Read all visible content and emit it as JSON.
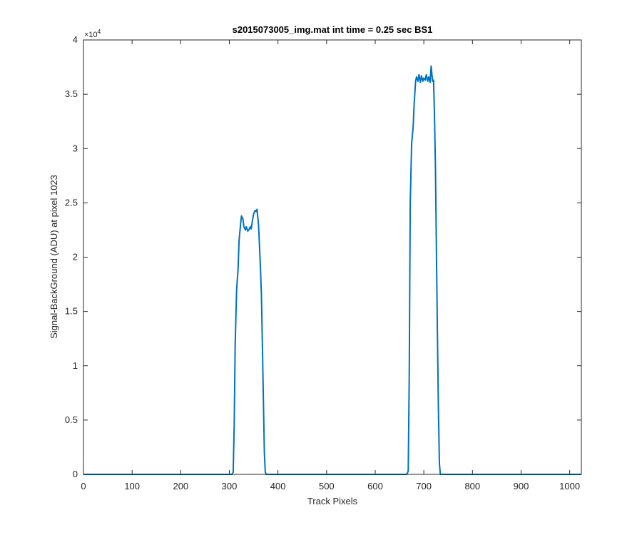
{
  "chart_data": {
    "type": "line",
    "title": "s2015073005_img.mat int time = 0.25 sec   BS1",
    "xlabel": "Track Pixels",
    "ylabel": "Signal-BackGround (ADU) at pixel 1023",
    "xlim": [
      0,
      1024
    ],
    "ylim": [
      0,
      40000
    ],
    "xticks": [
      0,
      100,
      200,
      300,
      400,
      500,
      600,
      700,
      800,
      900,
      1000
    ],
    "yticks": [
      0,
      5000,
      10000,
      15000,
      20000,
      25000,
      30000,
      35000,
      40000
    ],
    "yticklabels": [
      "0",
      "0.5",
      "1",
      "1.5",
      "2",
      "2.5",
      "3",
      "3.5",
      "4"
    ],
    "y_exponent_label": "×10",
    "y_exponent_power": "4",
    "grid": false,
    "line_color": "#0072BD",
    "series": [
      {
        "x": [
          0,
          100,
          200,
          300,
          305,
          308,
          310,
          312,
          315,
          318,
          320,
          323,
          325,
          328,
          330,
          333,
          335,
          338,
          340,
          343,
          345,
          348,
          350,
          353,
          355,
          357,
          360,
          362,
          364,
          366,
          368,
          370,
          372,
          374,
          376,
          380,
          400,
          500,
          600,
          665,
          668,
          670,
          672,
          675,
          678,
          680,
          683,
          685,
          688,
          690,
          693,
          695,
          698,
          700,
          703,
          705,
          708,
          710,
          713,
          715,
          718,
          720,
          722,
          724,
          726,
          728,
          730,
          732,
          734,
          736,
          740,
          800,
          900,
          1000,
          1024
        ],
        "y": [
          0,
          0,
          0,
          0,
          0,
          200,
          4500,
          12000,
          17000,
          19000,
          21500,
          23000,
          23800,
          23500,
          22800,
          22500,
          22800,
          22400,
          22500,
          22800,
          22600,
          23500,
          24000,
          24300,
          24200,
          24400,
          23000,
          21000,
          19000,
          16500,
          12000,
          7000,
          2000,
          200,
          0,
          0,
          0,
          0,
          0,
          0,
          300,
          9000,
          25000,
          30500,
          32000,
          34000,
          36200,
          36600,
          36200,
          36800,
          36100,
          36700,
          36200,
          36500,
          36300,
          36800,
          36200,
          36600,
          36100,
          37600,
          36200,
          36300,
          33000,
          28000,
          20000,
          13000,
          6000,
          1000,
          0,
          0,
          0,
          0,
          0,
          0,
          0
        ]
      }
    ]
  }
}
